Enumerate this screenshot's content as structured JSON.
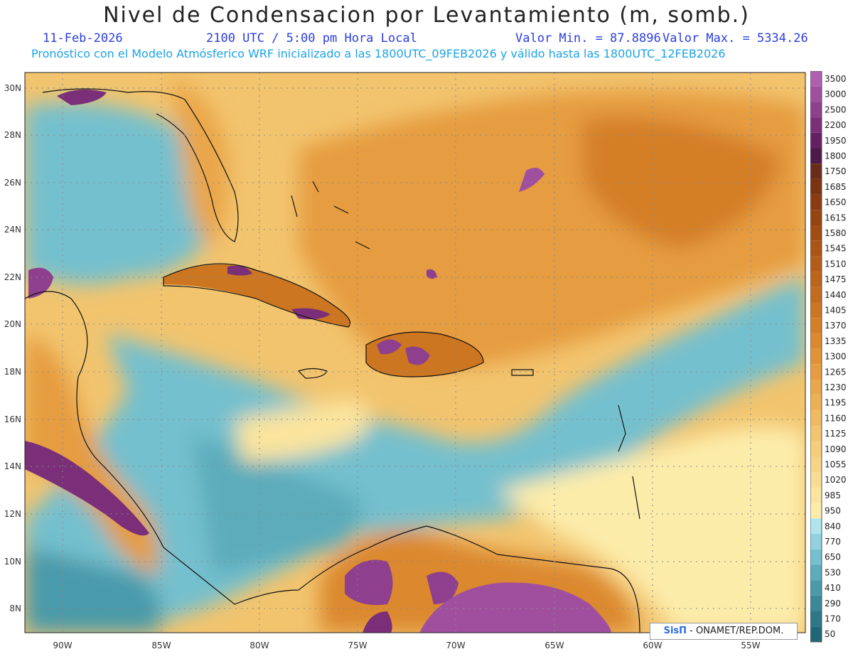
{
  "header": {
    "title": "Nivel de Condensacion por Levantamiento (m, somb.)",
    "date": "11-Feb-2026",
    "time": "2100 UTC / 5:00 pm Hora Local",
    "min_label": "Valor Min. = 87.8896",
    "max_label": "Valor Max. = 5334.26",
    "subtitle": "Pronóstico con el Modelo Atmósferico WRF inicializado a las 1800UTC_09FEB2026 y válido hasta las  1800UTC_12FEB2026"
  },
  "credit": {
    "brand": "SisΠ",
    "text": " - ONAMET/REP.DOM."
  },
  "map": {
    "lon_ticks": [
      "90W",
      "85W",
      "80W",
      "75W",
      "70W",
      "65W",
      "60W",
      "55W"
    ],
    "lat_ticks": [
      "30N",
      "28N",
      "26N",
      "24N",
      "22N",
      "20N",
      "18N",
      "16N",
      "14N",
      "12N",
      "10N",
      "8N"
    ]
  },
  "legend": {
    "levels": [
      "3500",
      "3000",
      "2500",
      "2200",
      "1950",
      "1800",
      "1750",
      "1685",
      "1650",
      "1615",
      "1580",
      "1545",
      "1510",
      "1475",
      "1440",
      "1405",
      "1370",
      "1335",
      "1300",
      "1265",
      "1230",
      "1195",
      "1160",
      "1125",
      "1090",
      "1055",
      "1020",
      "985",
      "950",
      "840",
      "770",
      "650",
      "530",
      "410",
      "290",
      "170",
      "50"
    ],
    "colors": [
      "#b05fb0",
      "#a04f9f",
      "#8e3f8d",
      "#7a2f78",
      "#652063",
      "#4d1a4a",
      "#6a2c18",
      "#7a3410",
      "#8a3c10",
      "#964412",
      "#a24c14",
      "#ac5416",
      "#b45c18",
      "#bc641a",
      "#c46c1e",
      "#cc7622",
      "#d47e28",
      "#dc882e",
      "#e29236",
      "#e69c40",
      "#eaa64a",
      "#eeb056",
      "#f0ba62",
      "#f2c46e",
      "#f4cc7a",
      "#f6d486",
      "#f8dc92",
      "#fae49e",
      "#fcecaa",
      "#aee4ec",
      "#90d2de",
      "#74c0ce",
      "#5cacbc",
      "#4a9aaa",
      "#3a8898",
      "#2c7888",
      "#1e6878"
    ]
  }
}
